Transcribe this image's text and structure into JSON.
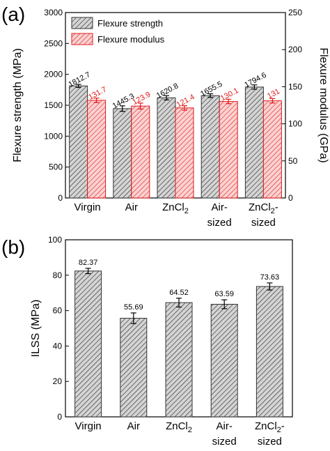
{
  "chart_data": [
    {
      "panel_label": "(a)",
      "type": "bar",
      "categories": [
        {
          "main": "Virgin",
          "sub": "",
          "second": ""
        },
        {
          "main": "Air",
          "sub": "",
          "second": ""
        },
        {
          "main": "ZnCl",
          "sub": "2",
          "second": ""
        },
        {
          "main": "Air-",
          "sub": "",
          "second": "sized"
        },
        {
          "main": "ZnCl",
          "sub": "2",
          "after": "-",
          "second": "sized"
        }
      ],
      "ylabel_left": "Flexure strength (MPa)",
      "ylabel_right": "Flexure modulus (GPa)",
      "ylim_left": [
        0,
        3000
      ],
      "ylim_right": [
        0,
        250
      ],
      "yticks_left": [
        0,
        500,
        1000,
        1500,
        2000,
        2500,
        3000
      ],
      "yticks_right": [
        0,
        50,
        100,
        150,
        200,
        250
      ],
      "legend_position": "top-left",
      "grid": false,
      "series": [
        {
          "name": "Flexure strength",
          "axis": "left",
          "color": "#555555",
          "fill": "hatch-gray",
          "values": [
            1812.7,
            1445.3,
            1620.8,
            1655.5,
            1794.6
          ],
          "errors": [
            25,
            45,
            35,
            30,
            35
          ],
          "labels": [
            "1812.7",
            "1445.3",
            "1620.8",
            "1655.5",
            "1794.6"
          ]
        },
        {
          "name": "Flexure modulus",
          "axis": "right",
          "color": "#e01a1a",
          "fill": "hatch-red",
          "values": [
            131.7,
            123.9,
            121.4,
            130.1,
            131
          ],
          "errors": [
            3,
            4,
            3,
            3,
            3
          ],
          "labels": [
            "131.7",
            "123.9",
            "121.4",
            "130.1",
            "131"
          ]
        }
      ]
    },
    {
      "panel_label": "(b)",
      "type": "bar",
      "categories": [
        {
          "main": "Virgin",
          "sub": "",
          "second": ""
        },
        {
          "main": "Air",
          "sub": "",
          "second": ""
        },
        {
          "main": "ZnCl",
          "sub": "2",
          "second": ""
        },
        {
          "main": "Air-",
          "sub": "",
          "second": "sized"
        },
        {
          "main": "ZnCl",
          "sub": "2",
          "after": "-",
          "second": "sized"
        }
      ],
      "ylabel": "ILSS (MPa)",
      "ylim": [
        0,
        100
      ],
      "yticks": [
        0,
        20,
        40,
        60,
        80,
        100
      ],
      "grid": false,
      "series": [
        {
          "color": "#555555",
          "fill": "hatch-gray",
          "values": [
            82.37,
            55.69,
            64.52,
            63.59,
            73.63
          ],
          "errors": [
            1.5,
            3,
            2.5,
            2.5,
            2
          ],
          "labels": [
            "82.37",
            "55.69",
            "64.52",
            "63.59",
            "73.63"
          ]
        }
      ]
    }
  ]
}
